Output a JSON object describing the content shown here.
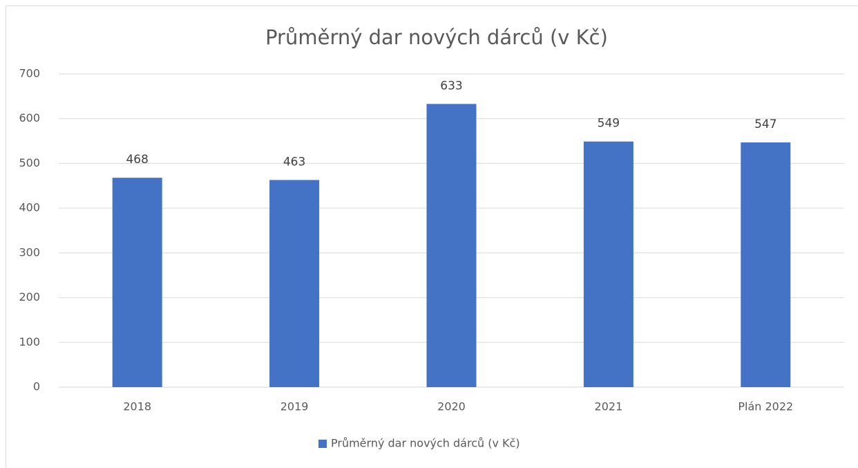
{
  "chart_data": {
    "type": "bar",
    "title": "Průměrný dar nových dárců (v Kč)",
    "categories": [
      "2018",
      "2019",
      "2020",
      "2021",
      "Plán 2022"
    ],
    "series": [
      {
        "name": "Průměrný dar nových dárců (v Kč)",
        "color": "#4472c4",
        "values": [
          468,
          463,
          633,
          549,
          547
        ]
      }
    ],
    "ylim": [
      0,
      700
    ],
    "yticks": [
      0,
      100,
      200,
      300,
      400,
      500,
      600,
      700
    ],
    "grid": true,
    "legend": "bottom"
  }
}
